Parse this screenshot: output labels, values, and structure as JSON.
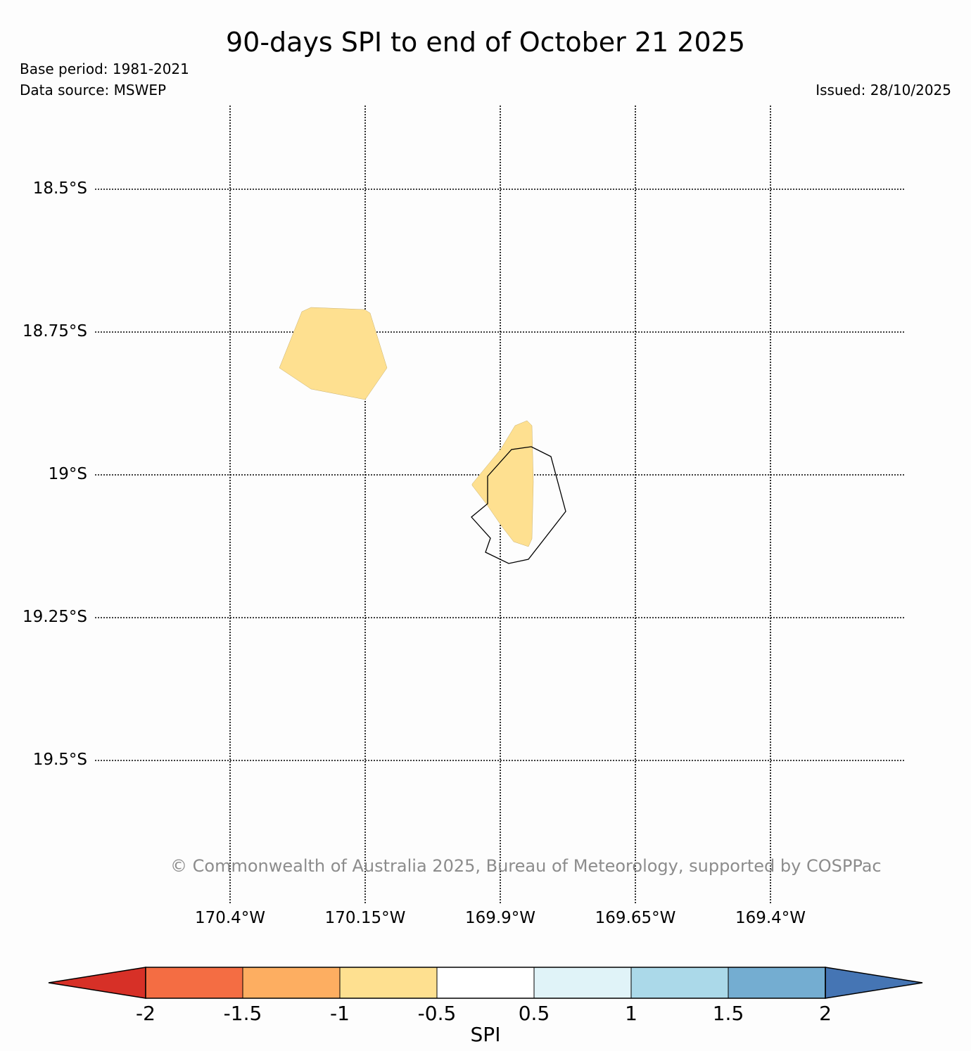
{
  "title": "90-days SPI to end of October 21 2025",
  "base_period": "Base period: 1981-2021",
  "data_source": "Data source: MSWEP",
  "issued": "Issued: 28/10/2025",
  "copyright": "© Commonwealth of Australia 2025, Bureau of Meteorology, supported by COSPPac",
  "map": {
    "lat_labels": [
      "18.5°S",
      "18.75°S",
      "19°S",
      "19.25°S",
      "19.5°S"
    ],
    "lon_labels": [
      "170.4°W",
      "170.15°W",
      "169.9°W",
      "169.65°W",
      "169.4°W"
    ],
    "spi_areas": [
      {
        "category": "-1 to -0.5",
        "color": "#fee090"
      },
      {
        "category": "-1 to -0.5",
        "color": "#fee090"
      }
    ],
    "coastline": "Niue"
  },
  "colorbar": {
    "title": "SPI",
    "tick_labels": [
      "-2",
      "-1.5",
      "-1",
      "-0.5",
      "0.5",
      "1",
      "1.5",
      "2"
    ],
    "colors": [
      "#d73027",
      "#f46d43",
      "#fdae61",
      "#fee090",
      "#ffffff",
      "#e0f3f8",
      "#abd9e9",
      "#74add1",
      "#4575b4"
    ]
  }
}
